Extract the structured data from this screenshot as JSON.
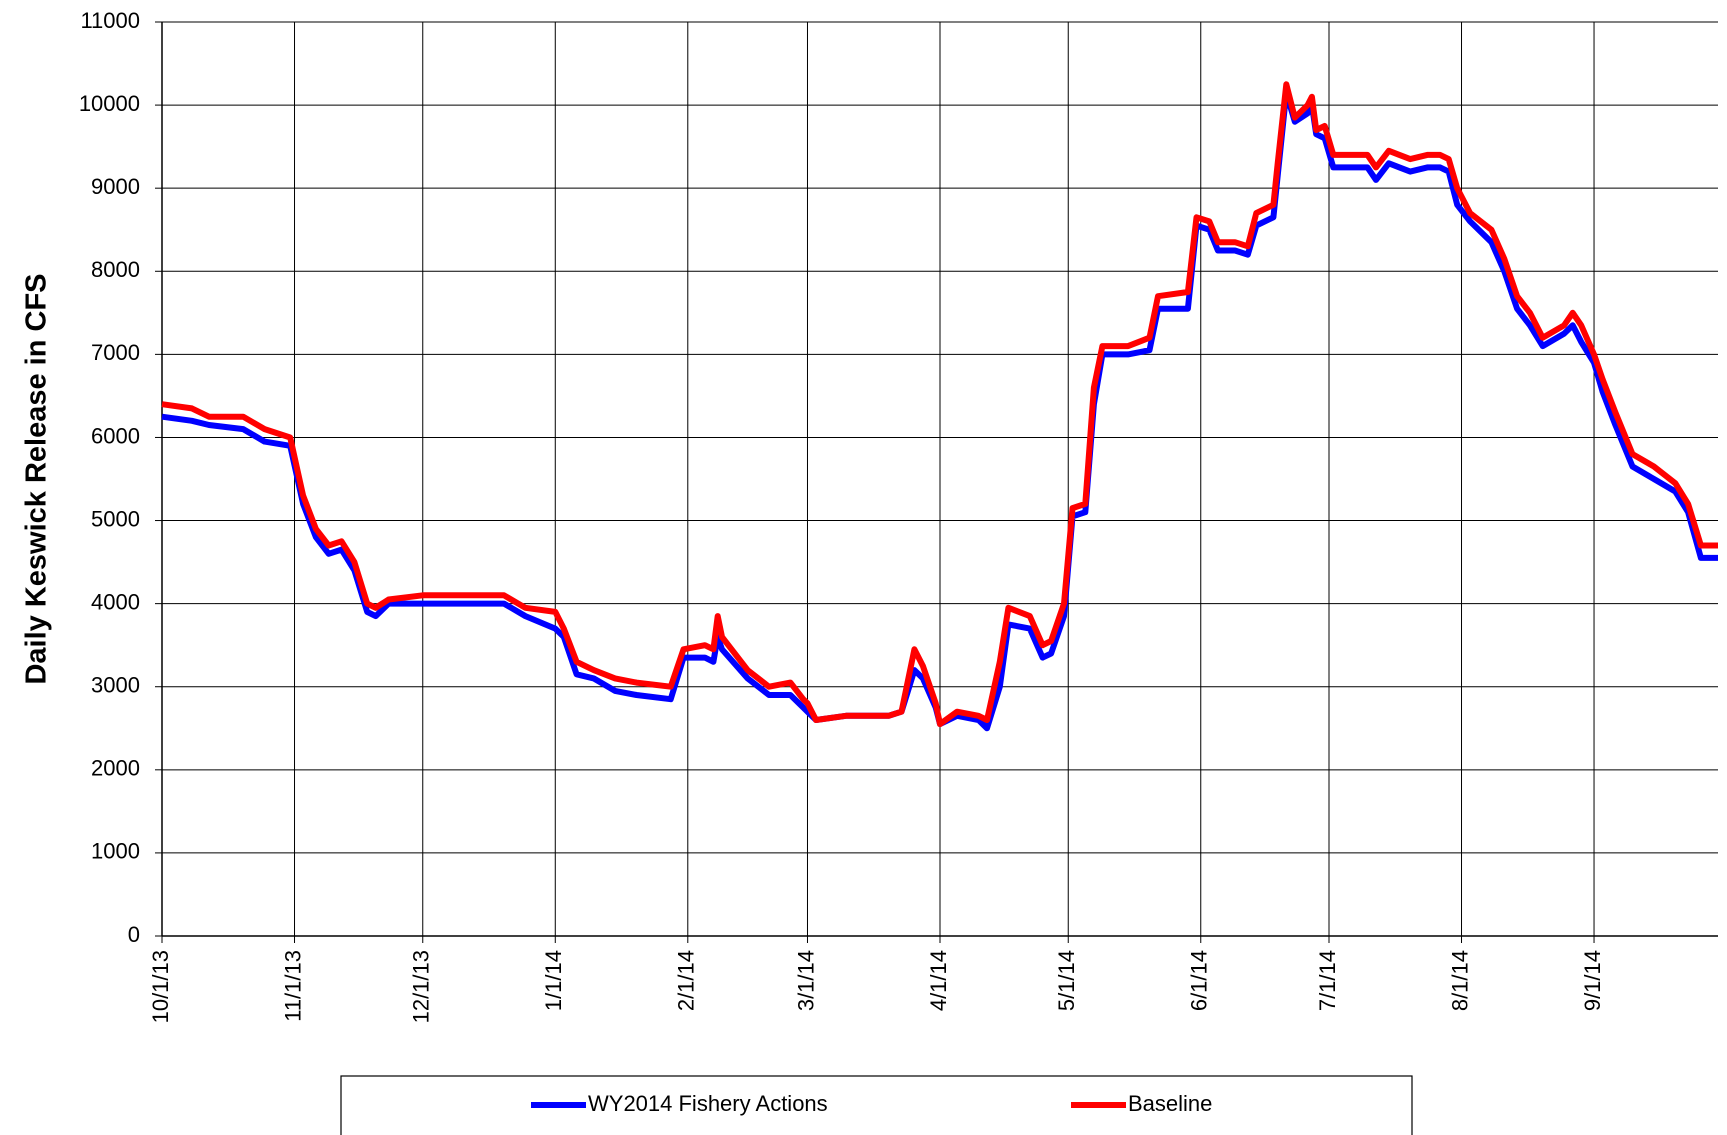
{
  "chart_data": {
    "type": "line",
    "y_label": "Daily Keswick Release in CFS",
    "x": [
      "10/1/13",
      "10/8/13",
      "10/12/13",
      "10/20/13",
      "10/25/13",
      "10/31/13",
      "11/3/13",
      "11/6/13",
      "11/9/13",
      "11/12/13",
      "11/15/13",
      "11/18/13",
      "11/20/13",
      "11/23/13",
      "12/1/13",
      "12/10/13",
      "12/20/13",
      "12/25/13",
      "1/1/14",
      "1/3/14",
      "1/6/14",
      "1/10/14",
      "1/15/14",
      "1/20/14",
      "1/28/14",
      "1/31/14",
      "2/5/14",
      "2/7/14",
      "2/8/14",
      "2/9/14",
      "2/15/14",
      "2/20/14",
      "2/25/14",
      "2/28/14",
      "3/1/14",
      "3/3/14",
      "3/10/14",
      "3/20/14",
      "3/23/14",
      "3/26/14",
      "3/28/14",
      "3/31/14",
      "4/1/14",
      "4/5/14",
      "4/10/14",
      "4/12/14",
      "4/15/14",
      "4/17/14",
      "4/22/14",
      "4/25/14",
      "4/27/14",
      "4/30/14",
      "5/2/14",
      "5/5/14",
      "5/7/14",
      "5/9/14",
      "5/15/14",
      "5/20/14",
      "5/22/14",
      "5/29/14",
      "5/31/14",
      "6/3/14",
      "6/5/14",
      "6/9/14",
      "6/12/14",
      "6/14/14",
      "6/18/14",
      "6/19/14",
      "6/21/14",
      "6/23/14",
      "6/26/14",
      "6/27/14",
      "6/28/14",
      "6/30/14",
      "7/2/14",
      "7/10/14",
      "7/12/14",
      "7/15/14",
      "7/20/14",
      "7/24/14",
      "7/27/14",
      "7/29/14",
      "7/31/14",
      "8/3/14",
      "8/8/14",
      "8/11/14",
      "8/14/14",
      "8/17/14",
      "8/20/14",
      "8/25/14",
      "8/27/14",
      "8/29/14",
      "9/1/14",
      "9/3/14",
      "9/6/14",
      "9/10/14",
      "9/15/14",
      "9/20/14",
      "9/23/14",
      "9/26/14",
      "9/30/14"
    ],
    "series": [
      {
        "name": "WY2014 Fishery Actions",
        "color": "#0000ff",
        "values": [
          6250,
          6200,
          6150,
          6100,
          5950,
          5900,
          5200,
          4800,
          4600,
          4650,
          4400,
          3900,
          3850,
          4000,
          4000,
          4000,
          4000,
          3850,
          3700,
          3600,
          3150,
          3100,
          2950,
          2900,
          2850,
          3350,
          3350,
          3300,
          3600,
          3450,
          3100,
          2900,
          2900,
          2750,
          2700,
          2600,
          2650,
          2650,
          2700,
          3200,
          3100,
          2750,
          2550,
          2650,
          2600,
          2500,
          3000,
          3750,
          3700,
          3350,
          3400,
          3850,
          5050,
          5100,
          6400,
          7000,
          7000,
          7050,
          7550,
          7550,
          8550,
          8500,
          8250,
          8250,
          8200,
          8550,
          8650,
          9150,
          10150,
          9800,
          9900,
          10000,
          9650,
          9600,
          9250,
          9250,
          9100,
          9300,
          9200,
          9250,
          9250,
          9200,
          8800,
          8600,
          8350,
          8000,
          7550,
          7350,
          7100,
          7250,
          7350,
          7150,
          6900,
          6550,
          6150,
          5650,
          5500,
          5350,
          5100,
          4550,
          4550
        ]
      },
      {
        "name": "Baseline",
        "color": "#ff0000",
        "values": [
          6400,
          6350,
          6250,
          6250,
          6100,
          6000,
          5300,
          4900,
          4700,
          4750,
          4500,
          4000,
          3950,
          4050,
          4100,
          4100,
          4100,
          3950,
          3900,
          3700,
          3300,
          3200,
          3100,
          3050,
          3000,
          3450,
          3500,
          3450,
          3850,
          3600,
          3200,
          3000,
          3050,
          2850,
          2800,
          2600,
          2650,
          2650,
          2700,
          3450,
          3250,
          2800,
          2550,
          2700,
          2650,
          2600,
          3300,
          3950,
          3850,
          3500,
          3550,
          4000,
          5150,
          5200,
          6600,
          7100,
          7100,
          7200,
          7700,
          7750,
          8650,
          8600,
          8350,
          8350,
          8300,
          8700,
          8800,
          9300,
          10250,
          9850,
          10000,
          10100,
          9700,
          9750,
          9400,
          9400,
          9250,
          9450,
          9350,
          9400,
          9400,
          9350,
          9000,
          8700,
          8500,
          8150,
          7700,
          7500,
          7200,
          7350,
          7500,
          7350,
          7000,
          6700,
          6300,
          5800,
          5650,
          5450,
          5200,
          4700,
          4700
        ]
      }
    ],
    "xlim": [
      "10/1/13",
      "9/30/14"
    ],
    "xticks": [
      "10/1/13",
      "11/1/13",
      "12/1/13",
      "1/1/14",
      "2/1/14",
      "3/1/14",
      "4/1/14",
      "5/1/14",
      "6/1/14",
      "7/1/14",
      "8/1/14",
      "9/1/14"
    ],
    "ylim": [
      0,
      11000
    ],
    "yticks": [
      0,
      1000,
      2000,
      3000,
      4000,
      5000,
      6000,
      7000,
      8000,
      9000,
      10000,
      11000
    ],
    "grid": true
  }
}
